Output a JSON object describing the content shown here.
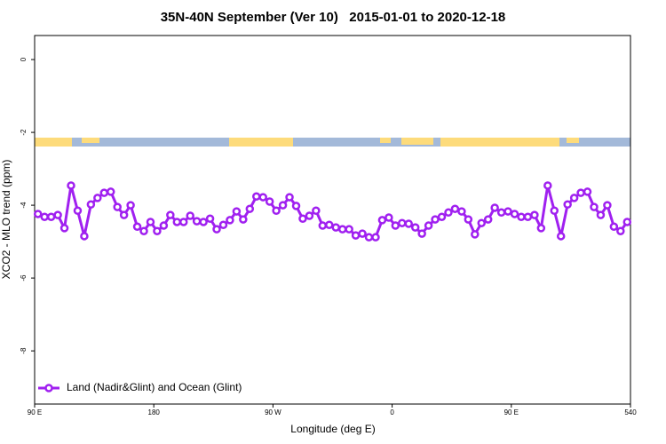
{
  "chart_data": {
    "type": "line",
    "title": "35N-40N September (Ver 10)   2015-01-01 to 2020-12-18",
    "xlabel": "Longitude (deg E)",
    "ylabel": "XCO2 - MLO trend (ppm)",
    "xlim": [
      90,
      540
    ],
    "ylim": [
      -9.46,
      0.66
    ],
    "xticks": [
      {
        "value": 90,
        "label": "90 E"
      },
      180,
      {
        "value": 270,
        "label": "90 W"
      },
      {
        "value": 360,
        "label": "0"
      },
      {
        "value": 450,
        "label": "90 E"
      },
      540
    ],
    "yticks": [
      0,
      -2,
      -4,
      -6,
      -8
    ],
    "legend": "bottomleft",
    "x": [
      92.5,
      97.5,
      102.5,
      107.5,
      112.5,
      117.5,
      122.5,
      127.5,
      132.5,
      137.5,
      142.5,
      147.5,
      152.5,
      157.5,
      162.5,
      167.5,
      172.5,
      177.5,
      182.5,
      187.5,
      192.5,
      197.5,
      202.5,
      207.5,
      212.5,
      217.5,
      222.5,
      227.5,
      232.5,
      237.5,
      242.5,
      247.5,
      252.5,
      257.5,
      262.5,
      267.5,
      272.5,
      277.5,
      282.5,
      287.5,
      292.5,
      297.5,
      302.5,
      307.5,
      312.5,
      317.5,
      322.5,
      327.5,
      332.5,
      337.5,
      342.5,
      347.5,
      352.5,
      357.5,
      362.5,
      367.5,
      372.5,
      377.5,
      382.5,
      387.5,
      392.5,
      397.5,
      402.5,
      407.5,
      412.5,
      417.5,
      422.5,
      427.5,
      432.5,
      437.5,
      442.5,
      447.5,
      452.5,
      457.5,
      462.5,
      467.5,
      472.5,
      477.5,
      482.5,
      487.5,
      492.5,
      497.5,
      502.5,
      507.5,
      512.5,
      517.5,
      522.5,
      527.5,
      532.5,
      537.5
    ],
    "series": [
      {
        "name": "Land (Nadir&Glint) and Ocean (Glint)",
        "color": "#a020f0",
        "values": [
          -4.24,
          -4.32,
          -4.32,
          -4.27,
          -4.63,
          -3.46,
          -4.15,
          -4.85,
          -3.98,
          -3.8,
          -3.66,
          -3.63,
          -4.05,
          -4.27,
          -4.0,
          -4.59,
          -4.71,
          -4.46,
          -4.71,
          -4.56,
          -4.27,
          -4.46,
          -4.46,
          -4.29,
          -4.44,
          -4.46,
          -4.37,
          -4.66,
          -4.54,
          -4.41,
          -4.17,
          -4.39,
          -4.1,
          -3.76,
          -3.78,
          -3.9,
          -4.15,
          -4.0,
          -3.78,
          -4.02,
          -4.37,
          -4.29,
          -4.15,
          -4.56,
          -4.54,
          -4.61,
          -4.66,
          -4.66,
          -4.83,
          -4.78,
          -4.88,
          -4.88,
          -4.41,
          -4.34,
          -4.56,
          -4.49,
          -4.51,
          -4.61,
          -4.78,
          -4.56,
          -4.39,
          -4.32,
          -4.2,
          -4.1,
          -4.17,
          -4.39,
          -4.8,
          -4.49,
          -4.39,
          -4.07,
          -4.2,
          -4.17,
          -4.24,
          -4.32,
          -4.32,
          -4.27,
          -4.63,
          -3.46,
          -4.15,
          -4.85,
          -3.98,
          -3.8,
          -3.66,
          -3.63,
          -4.05,
          -4.27,
          -4.0,
          -4.59,
          -4.71,
          -4.46
        ]
      }
    ]
  }
}
